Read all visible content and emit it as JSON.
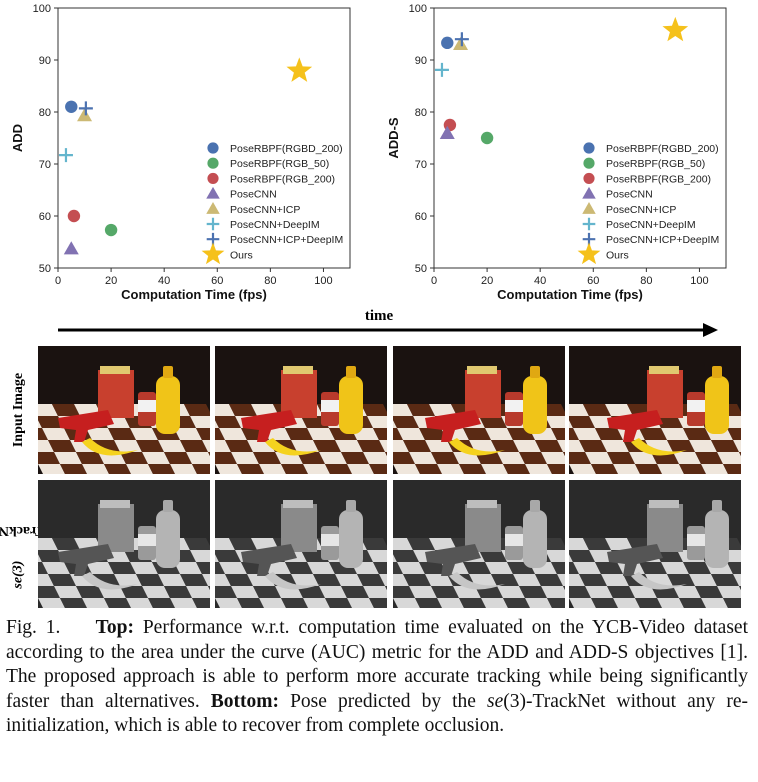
{
  "chart_data": [
    {
      "type": "scatter",
      "title": "",
      "xlabel": "Computation Time (fps)",
      "ylabel": "ADD",
      "xlim": [
        0,
        110
      ],
      "ylim": [
        50,
        100
      ],
      "xticks": [
        "0",
        "20",
        "40",
        "60",
        "80",
        "100"
      ],
      "yticks": [
        "50",
        "60",
        "70",
        "80",
        "90",
        "100"
      ],
      "grid": false,
      "legend_position": "bottom-right",
      "series": [
        {
          "name": "PoseRBPF(RGBD_200)",
          "marker": "circle",
          "color": "#4a72b0",
          "points": [
            {
              "x": 5,
              "y": 81
            }
          ]
        },
        {
          "name": "PoseRBPF(RGB_50)",
          "marker": "circle",
          "color": "#55a868",
          "points": [
            {
              "x": 20,
              "y": 57.3
            }
          ]
        },
        {
          "name": "PoseRBPF(RGB_200)",
          "marker": "circle",
          "color": "#c44e52",
          "points": [
            {
              "x": 6,
              "y": 60
            }
          ]
        },
        {
          "name": "PoseCNN",
          "marker": "triangle",
          "color": "#8172b2",
          "points": [
            {
              "x": 5,
              "y": 53.7
            }
          ]
        },
        {
          "name": "PoseCNN+ICP",
          "marker": "triangle",
          "color": "#ccb974",
          "points": [
            {
              "x": 10,
              "y": 79.3
            }
          ]
        },
        {
          "name": "PoseCNN+DeepIM",
          "marker": "plus",
          "color": "#64b5cd",
          "points": [
            {
              "x": 3,
              "y": 71.7
            }
          ]
        },
        {
          "name": "PoseCNN+ICP+DeepIM",
          "marker": "plus",
          "color": "#4c72b0",
          "points": [
            {
              "x": 10.5,
              "y": 80.7
            }
          ]
        },
        {
          "name": "Ours",
          "marker": "star",
          "color": "#f5c11b",
          "points": [
            {
              "x": 90.9,
              "y": 87.9
            }
          ]
        }
      ]
    },
    {
      "type": "scatter",
      "title": "",
      "xlabel": "Computation Time (fps)",
      "ylabel": "ADD-S",
      "xlim": [
        0,
        110
      ],
      "ylim": [
        50,
        100
      ],
      "xticks": [
        "0",
        "20",
        "40",
        "60",
        "80",
        "100"
      ],
      "yticks": [
        "50",
        "60",
        "70",
        "80",
        "90",
        "100"
      ],
      "grid": false,
      "legend_position": "bottom-right",
      "series": [
        {
          "name": "PoseRBPF(RGBD_200)",
          "marker": "circle",
          "color": "#4a72b0",
          "points": [
            {
              "x": 5,
              "y": 93.3
            }
          ]
        },
        {
          "name": "PoseRBPF(RGB_50)",
          "marker": "circle",
          "color": "#55a868",
          "points": [
            {
              "x": 20,
              "y": 75
            }
          ]
        },
        {
          "name": "PoseRBPF(RGB_200)",
          "marker": "circle",
          "color": "#c44e52",
          "points": [
            {
              "x": 6,
              "y": 77.5
            }
          ]
        },
        {
          "name": "PoseCNN",
          "marker": "triangle",
          "color": "#8172b2",
          "points": [
            {
              "x": 5,
              "y": 75.9
            }
          ]
        },
        {
          "name": "PoseCNN+ICP",
          "marker": "triangle",
          "color": "#ccb974",
          "points": [
            {
              "x": 10,
              "y": 93
            }
          ]
        },
        {
          "name": "PoseCNN+DeepIM",
          "marker": "plus",
          "color": "#64b5cd",
          "points": [
            {
              "x": 3,
              "y": 88.1
            }
          ]
        },
        {
          "name": "PoseCNN+ICP+DeepIM",
          "marker": "plus",
          "color": "#4c72b0",
          "points": [
            {
              "x": 10.5,
              "y": 94.0
            }
          ]
        },
        {
          "name": "Ours",
          "marker": "star",
          "color": "#f5c11b",
          "points": [
            {
              "x": 90.9,
              "y": 95.7
            }
          ]
        }
      ]
    }
  ],
  "figure": {
    "arrow_label": "time",
    "row_labels": {
      "input": "Input Image",
      "track_italic": "se(3)",
      "track_rest": "-TrackNet"
    }
  },
  "caption": {
    "fig_label": "Fig. 1.",
    "top_label": "Top:",
    "top_text": " Performance w.r.t. computation time evaluated on the YCB-Video dataset according to the area under the curve (AUC) metric for the ADD and ADD-S objectives [1]. The proposed approach is able to perform more accurate tracking while being significantly faster than alternatives. ",
    "bottom_label": "Bottom:",
    "bottom_text_1": " Pose predicted by the ",
    "bottom_italic": "se",
    "bottom_math": "(3)",
    "bottom_text_2": "-TrackNet without any re-initialization, which is able to recover from complete occlusion."
  }
}
